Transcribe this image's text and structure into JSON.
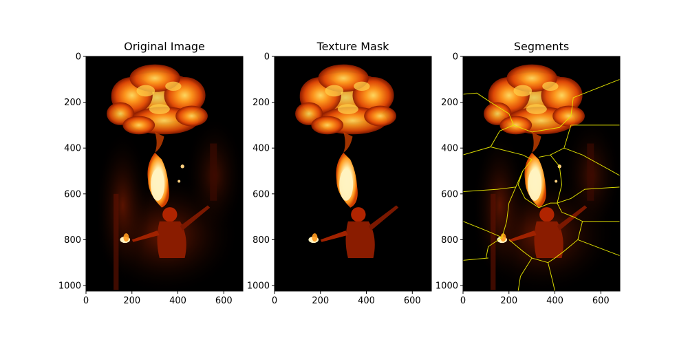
{
  "figure": {
    "background": "#ffffff",
    "panels": [
      {
        "title": "Original Image",
        "variant": "original"
      },
      {
        "title": "Texture Mask",
        "variant": "mask"
      },
      {
        "title": "Segments",
        "variant": "segments"
      }
    ]
  },
  "chart_data": {
    "type": "image",
    "panels": [
      "Original Image",
      "Texture Mask",
      "Segments"
    ],
    "x_ticks": [
      0,
      200,
      400,
      600
    ],
    "y_ticks": [
      0,
      200,
      400,
      600,
      800,
      1000
    ],
    "xlim": [
      0,
      683
    ],
    "ylim": [
      1024,
      0
    ],
    "grid": false,
    "legend": "none",
    "colors": {
      "flame_core": "#fff2c0",
      "flame_mid": "#ff9a1e",
      "flame_outer": "#c42a00",
      "background": "#000000",
      "segment_boundary": "#e6e600"
    }
  }
}
